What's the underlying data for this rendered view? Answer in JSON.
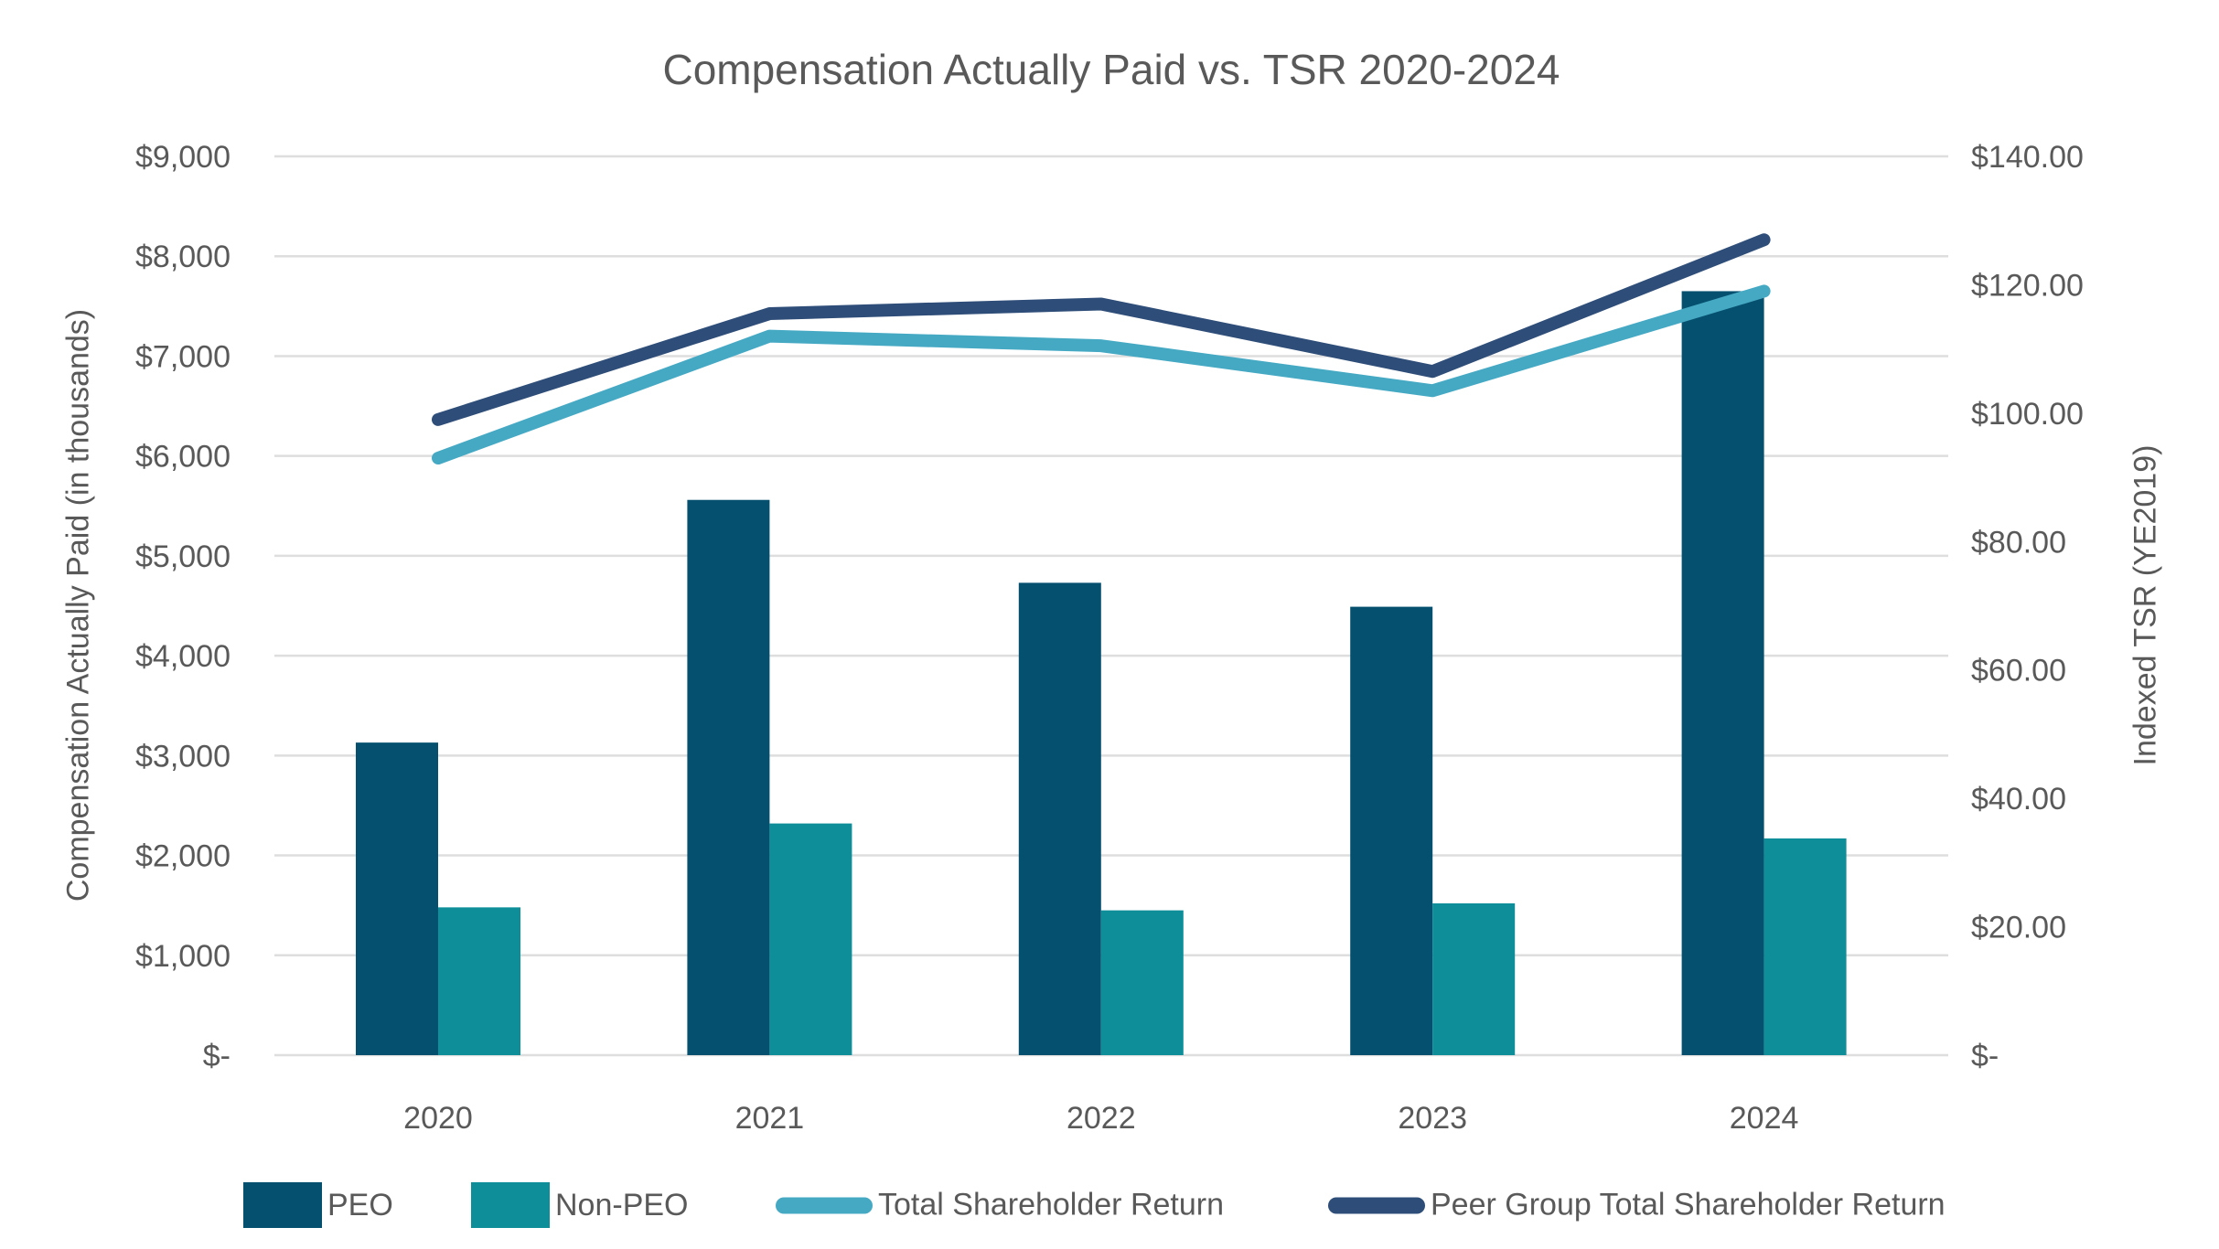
{
  "title": "Compensation Actually Paid vs. TSR 2020-2024",
  "colors": {
    "text": "#595959",
    "gridline": "#dedede",
    "background": "#ffffff",
    "peo": "#05506f",
    "non_peo": "#0d8e99",
    "tsr_line": "#45a9c4",
    "peer_tsr_line": "#2e4d78"
  },
  "axes": {
    "left": {
      "label": "Compensation Actually Paid (in thousands)",
      "ticks": [
        {
          "label": "$9,000",
          "value": 9000
        },
        {
          "label": "$8,000",
          "value": 8000
        },
        {
          "label": "$7,000",
          "value": 7000
        },
        {
          "label": "$6,000",
          "value": 6000
        },
        {
          "label": "$5,000",
          "value": 5000
        },
        {
          "label": "$4,000",
          "value": 4000
        },
        {
          "label": "$3,000",
          "value": 3000
        },
        {
          "label": "$2,000",
          "value": 2000
        },
        {
          "label": "$1,000",
          "value": 1000
        },
        {
          "label": "$-",
          "value": 0
        }
      ]
    },
    "right": {
      "label": "Indexed TSR (YE2019)",
      "ticks": [
        {
          "label": "$140.00",
          "value": 140
        },
        {
          "label": "$120.00",
          "value": 120
        },
        {
          "label": "$100.00",
          "value": 100
        },
        {
          "label": "$80.00",
          "value": 80
        },
        {
          "label": "$60.00",
          "value": 60
        },
        {
          "label": "$40.00",
          "value": 40
        },
        {
          "label": "$20.00",
          "value": 20
        },
        {
          "label": "$-",
          "value": 0
        }
      ]
    }
  },
  "chart_data": {
    "type": "combo-bar-line",
    "title": "Compensation Actually Paid vs. TSR 2020-2024",
    "categories": [
      "2020",
      "2021",
      "2022",
      "2023",
      "2024"
    ],
    "series": [
      {
        "name": "PEO",
        "type": "bar",
        "axis": "left",
        "color": "#05506f",
        "values": [
          3130,
          5560,
          4730,
          4490,
          7650
        ]
      },
      {
        "name": "Non-PEO",
        "type": "bar",
        "axis": "left",
        "color": "#0d8e99",
        "values": [
          1480,
          2320,
          1450,
          1520,
          2170
        ]
      },
      {
        "name": "Total Shareholder Return",
        "type": "line",
        "axis": "right",
        "color": "#45a9c4",
        "values": [
          93,
          112,
          110.5,
          103.5,
          119
        ]
      },
      {
        "name": "Peer Group Total Shareholder Return",
        "type": "line",
        "axis": "right",
        "color": "#2e4d78",
        "values": [
          99,
          115.5,
          117,
          106.5,
          127
        ]
      }
    ],
    "ylabel_left": "Compensation Actually Paid (in thousands)",
    "ylabel_right": "Indexed TSR (YE2019)",
    "xlabel": "",
    "ylim_left": [
      0,
      9000
    ],
    "ylim_right": [
      0,
      140
    ],
    "grid": true,
    "legend_position": "bottom"
  }
}
